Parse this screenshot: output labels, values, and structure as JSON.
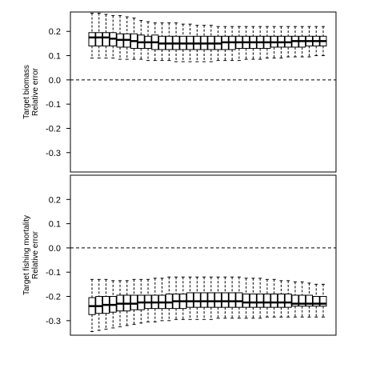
{
  "chart_data": [
    {
      "type": "boxplot",
      "ylabel_lines": [
        "Target biomass",
        "Relative error"
      ],
      "ylim": [
        -0.38,
        0.28
      ],
      "yticks": [
        "0.2",
        "0.1",
        "0.0",
        "-0.1",
        "-0.2",
        "-0.3"
      ],
      "reference_line": 0.0,
      "x_tick_labels_shown": false,
      "boxes": [
        {
          "whisker_low": 0.09,
          "q1": 0.14,
          "median": 0.175,
          "q3": 0.195,
          "whisker_high": 0.275
        },
        {
          "whisker_low": 0.09,
          "q1": 0.14,
          "median": 0.175,
          "q3": 0.195,
          "whisker_high": 0.275
        },
        {
          "whisker_low": 0.09,
          "q1": 0.14,
          "median": 0.175,
          "q3": 0.195,
          "whisker_high": 0.27
        },
        {
          "whisker_low": 0.09,
          "q1": 0.14,
          "median": 0.17,
          "q3": 0.195,
          "whisker_high": 0.265
        },
        {
          "whisker_low": 0.085,
          "q1": 0.135,
          "median": 0.165,
          "q3": 0.19,
          "whisker_high": 0.265
        },
        {
          "whisker_low": 0.085,
          "q1": 0.135,
          "median": 0.165,
          "q3": 0.19,
          "whisker_high": 0.26
        },
        {
          "whisker_low": 0.085,
          "q1": 0.13,
          "median": 0.16,
          "q3": 0.19,
          "whisker_high": 0.255
        },
        {
          "whisker_low": 0.085,
          "q1": 0.13,
          "median": 0.155,
          "q3": 0.185,
          "whisker_high": 0.245
        },
        {
          "whisker_low": 0.08,
          "q1": 0.13,
          "median": 0.155,
          "q3": 0.18,
          "whisker_high": 0.24
        },
        {
          "whisker_low": 0.08,
          "q1": 0.125,
          "median": 0.155,
          "q3": 0.185,
          "whisker_high": 0.235
        },
        {
          "whisker_low": 0.08,
          "q1": 0.125,
          "median": 0.15,
          "q3": 0.18,
          "whisker_high": 0.235
        },
        {
          "whisker_low": 0.08,
          "q1": 0.125,
          "median": 0.15,
          "q3": 0.18,
          "whisker_high": 0.235
        },
        {
          "whisker_low": 0.075,
          "q1": 0.125,
          "median": 0.15,
          "q3": 0.18,
          "whisker_high": 0.235
        },
        {
          "whisker_low": 0.075,
          "q1": 0.125,
          "median": 0.15,
          "q3": 0.18,
          "whisker_high": 0.23
        },
        {
          "whisker_low": 0.075,
          "q1": 0.125,
          "median": 0.15,
          "q3": 0.18,
          "whisker_high": 0.23
        },
        {
          "whisker_low": 0.075,
          "q1": 0.125,
          "median": 0.15,
          "q3": 0.18,
          "whisker_high": 0.225
        },
        {
          "whisker_low": 0.075,
          "q1": 0.125,
          "median": 0.15,
          "q3": 0.18,
          "whisker_high": 0.225
        },
        {
          "whisker_low": 0.075,
          "q1": 0.125,
          "median": 0.15,
          "q3": 0.18,
          "whisker_high": 0.225
        },
        {
          "whisker_low": 0.08,
          "q1": 0.125,
          "median": 0.15,
          "q3": 0.18,
          "whisker_high": 0.22
        },
        {
          "whisker_low": 0.08,
          "q1": 0.125,
          "median": 0.155,
          "q3": 0.18,
          "whisker_high": 0.22
        },
        {
          "whisker_low": 0.08,
          "q1": 0.125,
          "median": 0.155,
          "q3": 0.18,
          "whisker_high": 0.22
        },
        {
          "whisker_low": 0.08,
          "q1": 0.13,
          "median": 0.155,
          "q3": 0.18,
          "whisker_high": 0.22
        },
        {
          "whisker_low": 0.085,
          "q1": 0.13,
          "median": 0.155,
          "q3": 0.18,
          "whisker_high": 0.22
        },
        {
          "whisker_low": 0.085,
          "q1": 0.13,
          "median": 0.155,
          "q3": 0.18,
          "whisker_high": 0.22
        },
        {
          "whisker_low": 0.085,
          "q1": 0.13,
          "median": 0.155,
          "q3": 0.18,
          "whisker_high": 0.22
        },
        {
          "whisker_low": 0.09,
          "q1": 0.13,
          "median": 0.155,
          "q3": 0.18,
          "whisker_high": 0.22
        },
        {
          "whisker_low": 0.09,
          "q1": 0.135,
          "median": 0.155,
          "q3": 0.18,
          "whisker_high": 0.22
        },
        {
          "whisker_low": 0.09,
          "q1": 0.135,
          "median": 0.155,
          "q3": 0.18,
          "whisker_high": 0.22
        },
        {
          "whisker_low": 0.095,
          "q1": 0.135,
          "median": 0.155,
          "q3": 0.18,
          "whisker_high": 0.22
        },
        {
          "whisker_low": 0.095,
          "q1": 0.135,
          "median": 0.16,
          "q3": 0.18,
          "whisker_high": 0.22
        },
        {
          "whisker_low": 0.095,
          "q1": 0.135,
          "median": 0.16,
          "q3": 0.18,
          "whisker_high": 0.22
        },
        {
          "whisker_low": 0.095,
          "q1": 0.14,
          "median": 0.16,
          "q3": 0.18,
          "whisker_high": 0.22
        },
        {
          "whisker_low": 0.1,
          "q1": 0.14,
          "median": 0.16,
          "q3": 0.18,
          "whisker_high": 0.22
        },
        {
          "whisker_low": 0.1,
          "q1": 0.14,
          "median": 0.16,
          "q3": 0.18,
          "whisker_high": 0.22
        }
      ]
    },
    {
      "type": "boxplot",
      "ylabel_lines": [
        "Target fishing mortality",
        "Relative error"
      ],
      "ylim": [
        -0.36,
        0.3
      ],
      "yticks": [
        "0.2",
        "0.1",
        "0.0",
        "-0.1",
        "-0.2",
        "-0.3"
      ],
      "reference_line": 0.0,
      "x_tick_labels_shown": false,
      "boxes": [
        {
          "whisker_low": -0.345,
          "q1": -0.275,
          "median": -0.24,
          "q3": -0.205,
          "whisker_high": -0.13
        },
        {
          "whisker_low": -0.34,
          "q1": -0.27,
          "median": -0.24,
          "q3": -0.2,
          "whisker_high": -0.13
        },
        {
          "whisker_low": -0.335,
          "q1": -0.27,
          "median": -0.235,
          "q3": -0.2,
          "whisker_high": -0.13
        },
        {
          "whisker_low": -0.33,
          "q1": -0.265,
          "median": -0.235,
          "q3": -0.2,
          "whisker_high": -0.135
        },
        {
          "whisker_low": -0.325,
          "q1": -0.26,
          "median": -0.23,
          "q3": -0.195,
          "whisker_high": -0.135
        },
        {
          "whisker_low": -0.32,
          "q1": -0.26,
          "median": -0.23,
          "q3": -0.195,
          "whisker_high": -0.135
        },
        {
          "whisker_low": -0.315,
          "q1": -0.255,
          "median": -0.23,
          "q3": -0.195,
          "whisker_high": -0.13
        },
        {
          "whisker_low": -0.31,
          "q1": -0.255,
          "median": -0.225,
          "q3": -0.195,
          "whisker_high": -0.13
        },
        {
          "whisker_low": -0.305,
          "q1": -0.25,
          "median": -0.225,
          "q3": -0.195,
          "whisker_high": -0.13
        },
        {
          "whisker_low": -0.305,
          "q1": -0.25,
          "median": -0.225,
          "q3": -0.195,
          "whisker_high": -0.125
        },
        {
          "whisker_low": -0.3,
          "q1": -0.25,
          "median": -0.225,
          "q3": -0.195,
          "whisker_high": -0.125
        },
        {
          "whisker_low": -0.3,
          "q1": -0.25,
          "median": -0.225,
          "q3": -0.19,
          "whisker_high": -0.12
        },
        {
          "whisker_low": -0.295,
          "q1": -0.25,
          "median": -0.22,
          "q3": -0.19,
          "whisker_high": -0.12
        },
        {
          "whisker_low": -0.295,
          "q1": -0.25,
          "median": -0.22,
          "q3": -0.19,
          "whisker_high": -0.12
        },
        {
          "whisker_low": -0.295,
          "q1": -0.245,
          "median": -0.22,
          "q3": -0.185,
          "whisker_high": -0.12
        },
        {
          "whisker_low": -0.295,
          "q1": -0.245,
          "median": -0.22,
          "q3": -0.185,
          "whisker_high": -0.12
        },
        {
          "whisker_low": -0.295,
          "q1": -0.245,
          "median": -0.22,
          "q3": -0.185,
          "whisker_high": -0.12
        },
        {
          "whisker_low": -0.295,
          "q1": -0.245,
          "median": -0.22,
          "q3": -0.185,
          "whisker_high": -0.12
        },
        {
          "whisker_low": -0.29,
          "q1": -0.245,
          "median": -0.22,
          "q3": -0.185,
          "whisker_high": -0.12
        },
        {
          "whisker_low": -0.29,
          "q1": -0.245,
          "median": -0.22,
          "q3": -0.185,
          "whisker_high": -0.12
        },
        {
          "whisker_low": -0.29,
          "q1": -0.245,
          "median": -0.22,
          "q3": -0.185,
          "whisker_high": -0.12
        },
        {
          "whisker_low": -0.29,
          "q1": -0.245,
          "median": -0.22,
          "q3": -0.185,
          "whisker_high": -0.12
        },
        {
          "whisker_low": -0.29,
          "q1": -0.245,
          "median": -0.225,
          "q3": -0.19,
          "whisker_high": -0.125
        },
        {
          "whisker_low": -0.29,
          "q1": -0.245,
          "median": -0.225,
          "q3": -0.19,
          "whisker_high": -0.125
        },
        {
          "whisker_low": -0.29,
          "q1": -0.245,
          "median": -0.225,
          "q3": -0.19,
          "whisker_high": -0.125
        },
        {
          "whisker_low": -0.285,
          "q1": -0.245,
          "median": -0.225,
          "q3": -0.19,
          "whisker_high": -0.13
        },
        {
          "whisker_low": -0.285,
          "q1": -0.245,
          "median": -0.225,
          "q3": -0.19,
          "whisker_high": -0.13
        },
        {
          "whisker_low": -0.285,
          "q1": -0.245,
          "median": -0.225,
          "q3": -0.19,
          "whisker_high": -0.135
        },
        {
          "whisker_low": -0.285,
          "q1": -0.245,
          "median": -0.225,
          "q3": -0.19,
          "whisker_high": -0.135
        },
        {
          "whisker_low": -0.285,
          "q1": -0.24,
          "median": -0.23,
          "q3": -0.195,
          "whisker_high": -0.14
        },
        {
          "whisker_low": -0.285,
          "q1": -0.24,
          "median": -0.23,
          "q3": -0.195,
          "whisker_high": -0.14
        },
        {
          "whisker_low": -0.285,
          "q1": -0.24,
          "median": -0.23,
          "q3": -0.195,
          "whisker_high": -0.145
        },
        {
          "whisker_low": -0.285,
          "q1": -0.24,
          "median": -0.23,
          "q3": -0.2,
          "whisker_high": -0.15
        },
        {
          "whisker_low": -0.285,
          "q1": -0.24,
          "median": -0.23,
          "q3": -0.2,
          "whisker_high": -0.15
        }
      ]
    }
  ]
}
